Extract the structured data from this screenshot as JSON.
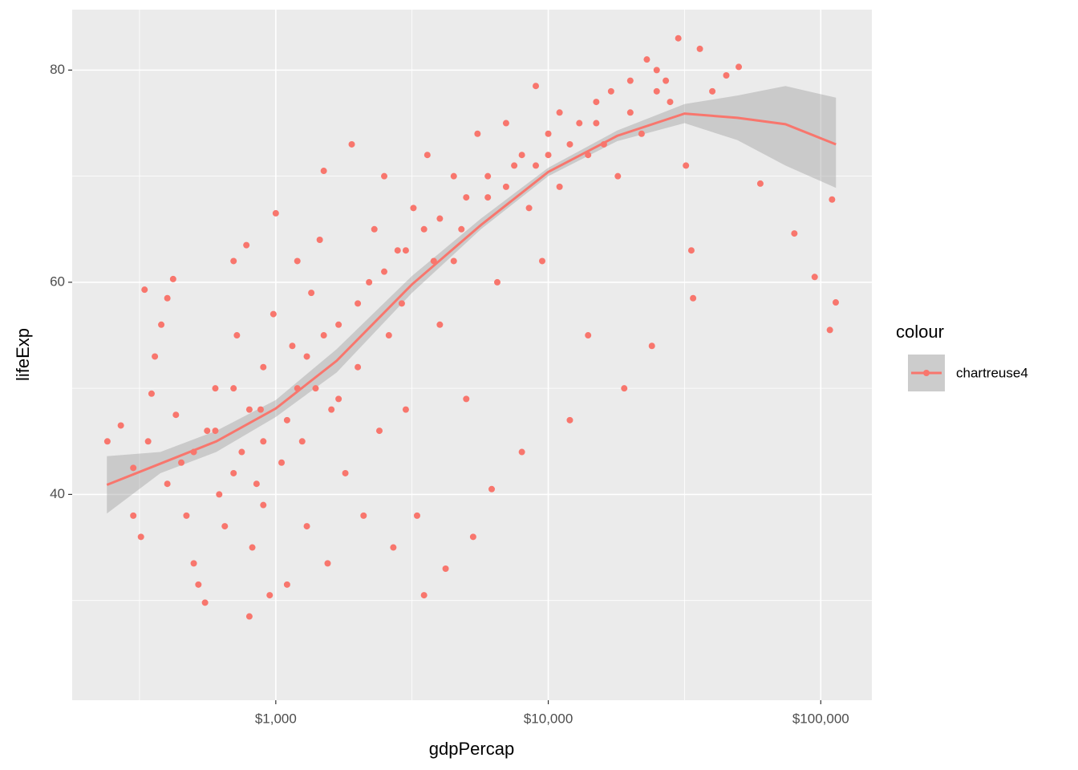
{
  "chart_data": {
    "type": "scatter",
    "x_label": "gdpPercap",
    "y_label": "lifeExp",
    "log_x": true,
    "grid": true,
    "legend_title": "colour",
    "legend_position": "right",
    "xlim": [
      179,
      154000
    ],
    "ylim": [
      20.6,
      85.7
    ],
    "xticks": [
      {
        "value": 1000,
        "label": "$1,000"
      },
      {
        "value": 10000,
        "label": "$10,000"
      },
      {
        "value": 100000,
        "label": "$100,000"
      }
    ],
    "x_minor_ticks": [
      316.2,
      3162,
      31623
    ],
    "yticks": [
      40,
      60,
      80
    ],
    "y_minor_ticks": [
      30,
      50,
      70
    ],
    "series": [
      {
        "name": "chartreuse4",
        "color": "#F8766D",
        "x": [
          241,
          270,
          300,
          320,
          330,
          340,
          350,
          360,
          380,
          400,
          420,
          430,
          450,
          470,
          500,
          520,
          550,
          560,
          600,
          620,
          650,
          700,
          720,
          750,
          780,
          800,
          820,
          850,
          880,
          900,
          950,
          980,
          1000,
          1050,
          1100,
          1150,
          1200,
          1250,
          1300,
          1350,
          1400,
          1450,
          1500,
          1550,
          1600,
          1700,
          1800,
          1900,
          2000,
          2100,
          2200,
          2300,
          2400,
          2500,
          2600,
          2700,
          2800,
          2900,
          3000,
          3200,
          3300,
          3500,
          3600,
          3800,
          4000,
          4200,
          4500,
          4800,
          5000,
          5300,
          5500,
          6000,
          6200,
          6500,
          7000,
          7500,
          8000,
          8500,
          9000,
          9500,
          10000,
          11000,
          12000,
          13000,
          14000,
          15000,
          16000,
          18000,
          19000,
          20000,
          22000,
          24000,
          25000,
          28000,
          30000,
          32000,
          34000,
          36000,
          40000,
          45000,
          50000,
          60000,
          80000,
          95000,
          108000,
          110000,
          113500,
          33500,
          300,
          400,
          500,
          600,
          700,
          800,
          900,
          1200,
          1500,
          2000,
          3000,
          4000,
          5000,
          6000,
          8000,
          10000,
          12000,
          15000,
          20000,
          25000,
          700,
          900,
          1100,
          1300,
          1700,
          2500,
          3500,
          4500,
          7000,
          9000,
          11000,
          14000,
          17000,
          23000,
          27000
        ],
        "values": [
          45,
          46.5,
          42.5,
          36,
          59.3,
          45,
          49.5,
          53,
          56,
          58.5,
          60.3,
          47.5,
          43,
          38,
          33.5,
          31.5,
          29.8,
          46,
          50,
          40,
          37,
          62,
          55,
          44,
          63.5,
          28.5,
          35,
          41,
          48,
          52,
          30.5,
          57,
          66.5,
          43,
          31.5,
          54,
          62,
          45,
          37,
          59,
          50,
          64,
          70.5,
          33.5,
          48,
          56,
          42,
          73,
          52,
          38,
          60,
          65,
          46,
          70,
          55,
          35,
          63,
          58,
          48,
          67,
          38,
          30.5,
          72,
          62,
          56,
          33,
          70,
          65,
          49,
          36,
          74,
          68,
          40.5,
          60,
          75,
          71,
          44,
          67,
          78.5,
          62,
          72,
          69,
          47,
          75,
          55,
          77,
          73,
          70,
          50,
          79,
          74,
          54,
          80,
          77,
          83,
          71,
          58.5,
          82,
          78,
          79.5,
          80.3,
          69.3,
          64.6,
          60.5,
          55.5,
          67.8,
          58.1,
          63,
          38,
          41,
          44,
          46,
          42,
          48,
          45,
          50,
          55,
          58,
          63,
          66,
          68,
          70,
          72,
          74,
          73,
          75,
          76,
          78,
          50,
          39,
          47,
          53,
          49,
          61,
          65,
          62,
          69,
          71,
          76,
          72,
          78,
          81,
          79
        ]
      }
    ],
    "smooth": {
      "color": "#F8766D",
      "band_color": "#999999",
      "x": [
        240,
        377,
        605,
        1000,
        1673,
        3162,
        5662,
        10000,
        17900,
        31623,
        49400,
        74200,
        113700
      ],
      "values": [
        40.9,
        42.9,
        45,
        48.1,
        52.6,
        59.8,
        65.4,
        70.4,
        73.8,
        75.9,
        75.5,
        74.9,
        73
      ],
      "lower": [
        38.2,
        42,
        44,
        47.3,
        51.5,
        59,
        65,
        70,
        73.3,
        75,
        73.4,
        71,
        68.9
      ],
      "upper": [
        43.6,
        44,
        46,
        48.9,
        53.7,
        60.6,
        66,
        70.8,
        74.3,
        76.8,
        77.6,
        78.5,
        77.4
      ]
    }
  }
}
